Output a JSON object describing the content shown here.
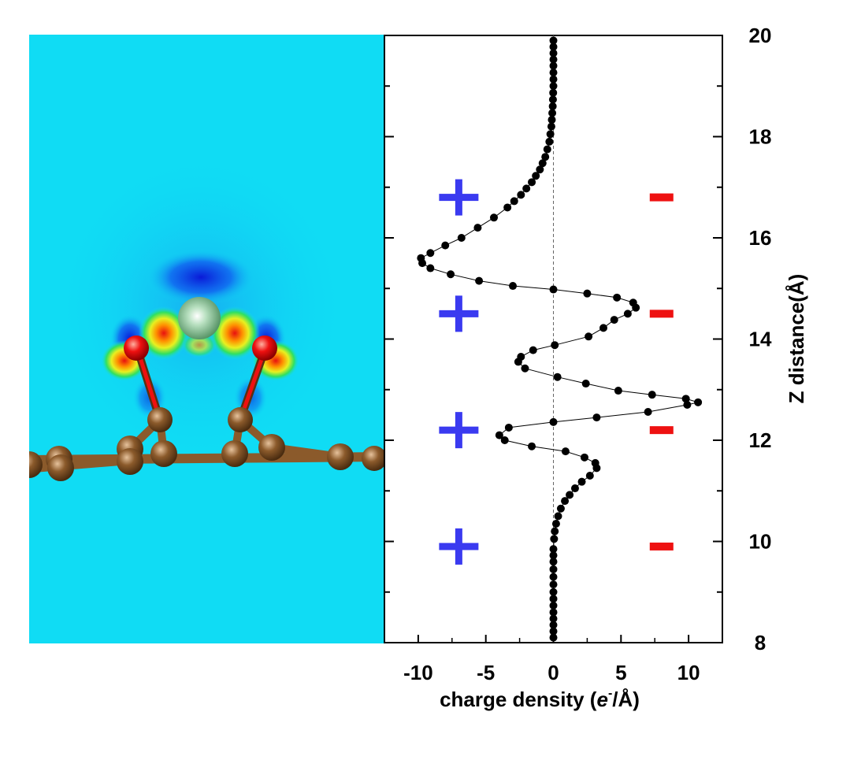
{
  "chart_data": {
    "type": "scatter",
    "orientation": "vertical-profile",
    "xlabel_main": "charge density (",
    "xlabel_e": "e",
    "xlabel_sup": "-",
    "xlabel_tail": "/Å)",
    "ylabel": "Z distance(Å)",
    "xlim": [
      -12.5,
      12.5
    ],
    "ylim": [
      8,
      20
    ],
    "xticks": [
      -10,
      -5,
      0,
      5,
      10
    ],
    "yticks": [
      8,
      10,
      12,
      14,
      16,
      18,
      20
    ],
    "zero_reference_line": "dashed",
    "marker_color": "#000000",
    "plus_sign_color": "#3a3af0",
    "minus_sign_color": "#ee1111",
    "sign_marker_z": [
      16.8,
      14.5,
      12.2,
      9.9
    ],
    "sign_marker_x": {
      "plus": -7,
      "minus": 8
    },
    "series": [
      {
        "points": [
          {
            "z": 19.9,
            "q": 0.0
          },
          {
            "z": 19.4,
            "q": 0.0
          },
          {
            "z": 19.0,
            "q": 0.0
          },
          {
            "z": 18.6,
            "q": -0.05
          },
          {
            "z": 18.2,
            "q": -0.15
          },
          {
            "z": 17.9,
            "q": -0.3
          },
          {
            "z": 17.6,
            "q": -0.6
          },
          {
            "z": 17.35,
            "q": -1.0
          },
          {
            "z": 17.1,
            "q": -1.6
          },
          {
            "z": 16.85,
            "q": -2.4
          },
          {
            "z": 16.6,
            "q": -3.4
          },
          {
            "z": 16.4,
            "q": -4.4
          },
          {
            "z": 16.2,
            "q": -5.6
          },
          {
            "z": 16.0,
            "q": -6.8
          },
          {
            "z": 15.85,
            "q": -8.0
          },
          {
            "z": 15.7,
            "q": -9.1
          },
          {
            "z": 15.6,
            "q": -9.8
          },
          {
            "z": 15.5,
            "q": -9.7
          },
          {
            "z": 15.4,
            "q": -9.1
          },
          {
            "z": 15.28,
            "q": -7.6
          },
          {
            "z": 15.15,
            "q": -5.5
          },
          {
            "z": 15.05,
            "q": -3.0
          },
          {
            "z": 14.98,
            "q": 0.0
          },
          {
            "z": 14.9,
            "q": 2.5
          },
          {
            "z": 14.82,
            "q": 4.7
          },
          {
            "z": 14.72,
            "q": 5.9
          },
          {
            "z": 14.62,
            "q": 6.1
          },
          {
            "z": 14.5,
            "q": 5.5
          },
          {
            "z": 14.38,
            "q": 4.5
          },
          {
            "z": 14.22,
            "q": 3.7
          },
          {
            "z": 14.05,
            "q": 2.6
          },
          {
            "z": 13.88,
            "q": 0.1
          },
          {
            "z": 13.78,
            "q": -1.5
          },
          {
            "z": 13.65,
            "q": -2.4
          },
          {
            "z": 13.55,
            "q": -2.6
          },
          {
            "z": 13.42,
            "q": -2.1
          },
          {
            "z": 13.25,
            "q": 0.3
          },
          {
            "z": 13.12,
            "q": 2.4
          },
          {
            "z": 12.98,
            "q": 4.8
          },
          {
            "z": 12.9,
            "q": 7.3
          },
          {
            "z": 12.82,
            "q": 9.8
          },
          {
            "z": 12.75,
            "q": 10.7
          },
          {
            "z": 12.7,
            "q": 9.9
          },
          {
            "z": 12.56,
            "q": 7.0
          },
          {
            "z": 12.45,
            "q": 3.2
          },
          {
            "z": 12.36,
            "q": 0.0
          },
          {
            "z": 12.25,
            "q": -3.3
          },
          {
            "z": 12.1,
            "q": -4.0
          },
          {
            "z": 12.0,
            "q": -3.6
          },
          {
            "z": 11.88,
            "q": -1.6
          },
          {
            "z": 11.78,
            "q": 0.9
          },
          {
            "z": 11.66,
            "q": 2.3
          },
          {
            "z": 11.55,
            "q": 3.1
          },
          {
            "z": 11.45,
            "q": 3.2
          },
          {
            "z": 11.3,
            "q": 2.7
          },
          {
            "z": 11.18,
            "q": 2.1
          },
          {
            "z": 11.05,
            "q": 1.6
          },
          {
            "z": 10.92,
            "q": 1.2
          },
          {
            "z": 10.8,
            "q": 0.85
          },
          {
            "z": 10.65,
            "q": 0.55
          },
          {
            "z": 10.5,
            "q": 0.35
          },
          {
            "z": 10.35,
            "q": 0.2
          },
          {
            "z": 10.2,
            "q": 0.1
          },
          {
            "z": 10.05,
            "q": 0.05
          },
          {
            "z": 9.85,
            "q": 0.0
          },
          {
            "z": 9.6,
            "q": 0.0
          },
          {
            "z": 9.3,
            "q": 0.0
          },
          {
            "z": 9.0,
            "q": 0.0
          },
          {
            "z": 8.6,
            "q": 0.0
          },
          {
            "z": 8.1,
            "q": 0.0
          }
        ]
      }
    ]
  },
  "image_panel": {
    "background_color": "#10dcf4",
    "carbon_color": "#8b5a2b",
    "oxygen_color": "#ee1010",
    "metal_color": "#7fbf8a"
  }
}
